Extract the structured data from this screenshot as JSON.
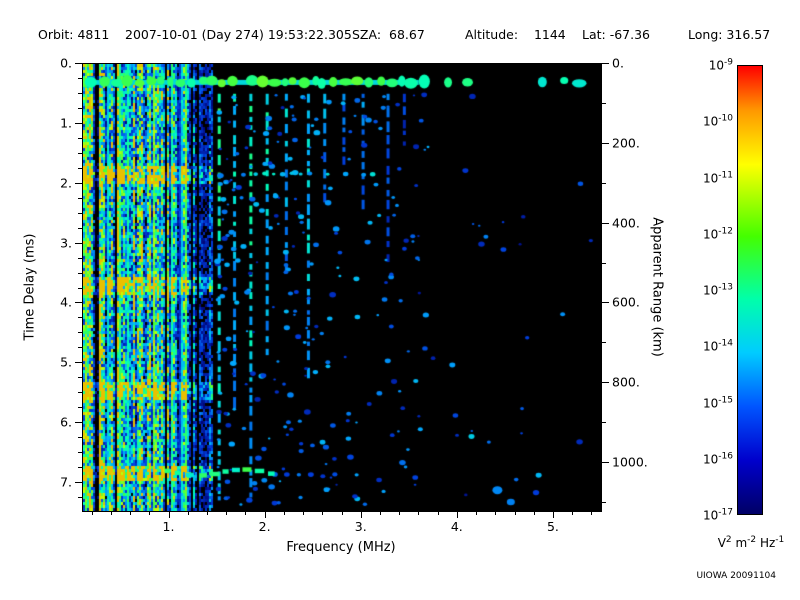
{
  "header": {
    "items": [
      "Orbit: 4811",
      "2007-10-01 (Day 274) 19:53:22.305",
      "SZA:  68.67",
      "Altitude:    1144",
      "Lat: -67.36",
      "Long: 316.57"
    ]
  },
  "footer": {
    "credit": "UIOWA 20091104"
  },
  "chart_data": {
    "type": "heatmap",
    "title": "",
    "xlabel": "Frequency (MHz)",
    "ylabel_left": "Time Delay (ms)",
    "ylabel_right": "Apparent Range (km)",
    "x_range": [
      0.1,
      5.5
    ],
    "x_ticks": [
      {
        "v": 1,
        "label": "1."
      },
      {
        "v": 2,
        "label": "2."
      },
      {
        "v": 3,
        "label": "3."
      },
      {
        "v": 4,
        "label": "4."
      },
      {
        "v": 5,
        "label": "5."
      }
    ],
    "x_minor_step": 0.2,
    "y_left_range": [
      0,
      7.5
    ],
    "y_left_ticks": [
      {
        "v": 0,
        "label": "0."
      },
      {
        "v": 1,
        "label": "1."
      },
      {
        "v": 2,
        "label": "2."
      },
      {
        "v": 3,
        "label": "3."
      },
      {
        "v": 4,
        "label": "4."
      },
      {
        "v": 5,
        "label": "5."
      },
      {
        "v": 6,
        "label": "6."
      },
      {
        "v": 7,
        "label": "7."
      }
    ],
    "y_left_minor_step": 0.25,
    "y_right_range_km": [
      0,
      1125
    ],
    "y_right_ticks": [
      {
        "v": 0,
        "label": "0."
      },
      {
        "v": 200,
        "label": "200."
      },
      {
        "v": 400,
        "label": "400."
      },
      {
        "v": 600,
        "label": "600."
      },
      {
        "v": 800,
        "label": "800."
      },
      {
        "v": 1000,
        "label": "1000."
      }
    ],
    "y_right_minor_step": 100,
    "grid": false,
    "background": "#000000",
    "colorbar": {
      "tick_exponents": [
        -9,
        -10,
        -11,
        -12,
        -13,
        -14,
        -15,
        -16,
        -17
      ],
      "unit_parts": [
        {
          "t": "V",
          "s": "2"
        },
        {
          "t": " m",
          "s": "-2"
        },
        {
          "t": " Hz",
          "s": "-1"
        }
      ],
      "gradient": [
        [
          "#ff0000",
          0
        ],
        [
          "#ff9900",
          10
        ],
        [
          "#ffff00",
          22
        ],
        [
          "#44ff00",
          38
        ],
        [
          "#00ffaa",
          52
        ],
        [
          "#00ccff",
          64
        ],
        [
          "#0055ff",
          76
        ],
        [
          "#0000cc",
          88
        ],
        [
          "#000066",
          100
        ]
      ]
    },
    "render": {
      "seed": 20091104,
      "features": [
        {
          "type": "noise_region",
          "f": [
            0.1,
            1.45
          ],
          "t": [
            0,
            7.5
          ],
          "harmonic_rows": [
            1.85,
            3.7,
            5.45,
            6.85
          ]
        },
        {
          "type": "band",
          "f": [
            0.12,
            5.45
          ],
          "t": 0.3,
          "v": 0.62
        },
        {
          "type": "vstripes",
          "stripes": [
            {
              "f": 1.52,
              "t": 7.4,
              "v": 0.62
            },
            {
              "f": 1.68,
              "t": 5.6,
              "v": 0.55
            },
            {
              "f": 1.85,
              "t": 7.2,
              "v": 0.6
            },
            {
              "f": 2.02,
              "t": 4.9,
              "v": 0.55
            },
            {
              "f": 2.22,
              "t": 3.4,
              "v": 0.5
            },
            {
              "f": 2.45,
              "t": 5.2,
              "v": 0.55
            },
            {
              "f": 2.62,
              "t": 2.2,
              "v": 0.45
            },
            {
              "f": 2.82,
              "t": 1.6,
              "v": 0.4
            },
            {
              "f": 3.02,
              "t": 2.4,
              "v": 0.4
            },
            {
              "f": 3.28,
              "t": 3.2,
              "v": 0.35
            },
            {
              "f": 3.45,
              "t": 1.3,
              "v": 0.32
            }
          ]
        },
        {
          "type": "scatter",
          "f": [
            1.5,
            3.7
          ],
          "t": [
            0.5,
            7.4
          ],
          "n": 260,
          "v": [
            0.2,
            0.45
          ]
        },
        {
          "type": "scatter",
          "f": [
            3.6,
            5.45
          ],
          "t": [
            0.5,
            7.4
          ],
          "n": 26,
          "v": [
            0.16,
            0.34
          ]
        },
        {
          "type": "hdots",
          "f": [
            1.9,
            3.15
          ],
          "t": 1.85,
          "v": 0.45,
          "step": 9
        },
        {
          "type": "hdots",
          "f": [
            2.1,
            2.8
          ],
          "t": 6.9,
          "v": 0.3,
          "step": 12
        },
        {
          "type": "trace",
          "f": [
            0.95,
            2.08
          ],
          "t": 6.85,
          "v": 0.62
        },
        {
          "type": "blobs",
          "v": 0.42,
          "points": [
            [
              4.42,
              7.15,
              5
            ],
            [
              4.56,
              7.35,
              4
            ],
            [
              4.15,
              6.25,
              3
            ],
            [
              3.95,
              5.05,
              3
            ],
            [
              4.85,
              6.9,
              3
            ],
            [
              5.1,
              4.2,
              2.5
            ],
            [
              4.3,
              2.9,
              2.5
            ]
          ]
        }
      ]
    }
  }
}
